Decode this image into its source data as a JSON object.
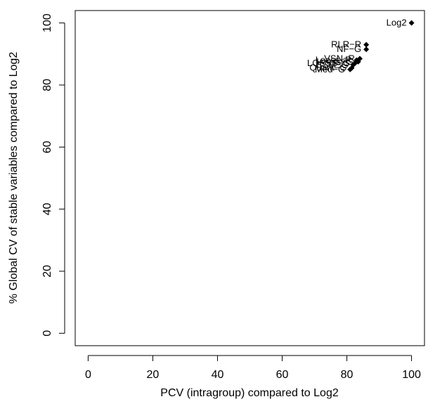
{
  "chart_data": {
    "type": "scatter",
    "xlabel": "PCV (intragroup) compared to Log2",
    "ylabel": "% Global CV of stable variables compared to Log2",
    "xlim": [
      -4,
      104
    ],
    "ylim": [
      -4,
      104
    ],
    "x_ticks": [
      "0",
      "20",
      "40",
      "60",
      "80",
      "100"
    ],
    "y_ticks": [
      "0",
      "20",
      "40",
      "60",
      "80",
      "100"
    ],
    "marker": "filled-diamond",
    "points": [
      {
        "label": "Log2",
        "x": 100,
        "y": 100
      },
      {
        "label": "RLR−R",
        "x": 86,
        "y": 93
      },
      {
        "label": "NF−G",
        "x": 86,
        "y": 91.5
      },
      {
        "label": "VSN−R",
        "x": 84,
        "y": 88.5
      },
      {
        "label": "Loess−R",
        "x": 83,
        "y": 88
      },
      {
        "label": "Loess−G",
        "x": 83.5,
        "y": 87.5
      },
      {
        "label": "LOESS−G",
        "x": 82.5,
        "y": 87
      },
      {
        "label": "CSM−G",
        "x": 82,
        "y": 86.5
      },
      {
        "label": "Quant−G",
        "x": 81.5,
        "y": 85.5
      },
      {
        "label": "Med−G",
        "x": 81,
        "y": 85
      }
    ]
  }
}
